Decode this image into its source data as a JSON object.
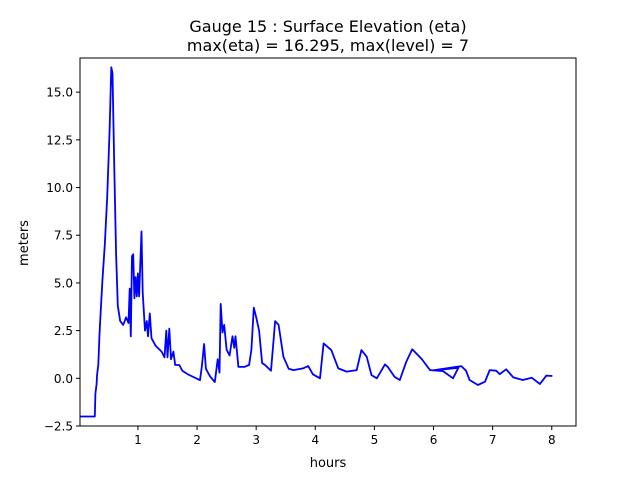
{
  "chart_data": {
    "type": "line",
    "title_line1": "Gauge 15 : Surface Elevation (eta)",
    "title_line2": "max(eta) =  16.295,    max(level) = 7",
    "xlabel": "hours",
    "ylabel": "meters",
    "xlim": [
      0.02,
      8.41
    ],
    "ylim": [
      -2.5,
      16.79
    ],
    "xticks": [
      1,
      2,
      3,
      4,
      5,
      6,
      7,
      8
    ],
    "xtick_labels": [
      "1",
      "2",
      "3",
      "4",
      "5",
      "6",
      "7",
      "8"
    ],
    "yticks": [
      -2.5,
      0,
      2.5,
      5,
      7.5,
      10,
      12.5,
      15
    ],
    "ytick_labels": [
      "−2.5",
      "0.0",
      "2.5",
      "5.0",
      "7.5",
      "10.0",
      "12.5",
      "15.0"
    ],
    "grid": false,
    "series": [
      {
        "name": "eta",
        "color": "#0000ff",
        "x": [
          0.02,
          0.27,
          0.28,
          0.3,
          0.31,
          0.33,
          0.35,
          0.37,
          0.4,
          0.44,
          0.48,
          0.52,
          0.55,
          0.57,
          0.6,
          0.63,
          0.66,
          0.7,
          0.75,
          0.8,
          0.84,
          0.86,
          0.88,
          0.9,
          0.92,
          0.94,
          0.96,
          0.98,
          1.0,
          1.02,
          1.04,
          1.06,
          1.08,
          1.12,
          1.15,
          1.17,
          1.2,
          1.23,
          1.3,
          1.4,
          1.45,
          1.48,
          1.5,
          1.53,
          1.56,
          1.6,
          1.63,
          1.7,
          1.75,
          1.85,
          2.05,
          2.08,
          2.12,
          2.15,
          2.22,
          2.3,
          2.35,
          2.38,
          2.4,
          2.43,
          2.46,
          2.5,
          2.55,
          2.6,
          2.63,
          2.65,
          2.7,
          2.8,
          2.88,
          2.92,
          2.96,
          3.0,
          3.05,
          3.1,
          3.15,
          3.25,
          3.3,
          3.32,
          3.38,
          3.46,
          3.55,
          3.63,
          3.79,
          3.88,
          3.96,
          4.08,
          4.14,
          4.27,
          4.39,
          4.53,
          4.7,
          4.78,
          4.87,
          4.95,
          5.04,
          5.18,
          5.23,
          5.34,
          5.43,
          5.54,
          5.64,
          5.8,
          5.94,
          6.0,
          6.16,
          6.33,
          6.42,
          6.0,
          6.47,
          6.55,
          6.61,
          6.75,
          6.87,
          6.95,
          7.06,
          7.12,
          7.23,
          7.35,
          7.51,
          7.66,
          7.8,
          7.91,
          8.01
        ],
        "y": [
          -2.0,
          -2.0,
          -0.8,
          -0.3,
          0.2,
          0.7,
          2.3,
          3.5,
          5.2,
          7.0,
          9.5,
          13.0,
          16.3,
          16.0,
          11.0,
          6.5,
          3.8,
          3.0,
          2.8,
          3.2,
          2.9,
          4.7,
          2.2,
          6.4,
          6.5,
          4.2,
          5.3,
          4.3,
          5.5,
          4.3,
          6.0,
          7.7,
          4.5,
          2.5,
          3.0,
          2.2,
          3.4,
          2.1,
          1.7,
          1.4,
          1.1,
          2.5,
          1.1,
          2.6,
          1.0,
          1.4,
          0.7,
          0.7,
          0.4,
          0.2,
          -0.1,
          0.6,
          1.8,
          0.5,
          0.1,
          -0.2,
          1.0,
          0.3,
          3.9,
          2.4,
          2.8,
          1.5,
          1.2,
          2.2,
          1.6,
          2.2,
          0.6,
          0.6,
          0.7,
          1.5,
          3.7,
          3.2,
          2.5,
          0.8,
          0.7,
          0.4,
          2.2,
          3.0,
          2.8,
          1.13,
          0.5,
          0.43,
          0.52,
          0.64,
          0.21,
          0.0,
          1.83,
          1.48,
          0.52,
          0.35,
          0.43,
          1.48,
          1.13,
          0.17,
          0.0,
          0.73,
          0.58,
          0.08,
          -0.09,
          0.87,
          1.52,
          1.01,
          0.43,
          0.42,
          0.38,
          0.0,
          0.55,
          0.42,
          0.64,
          0.4,
          -0.09,
          -0.35,
          -0.18,
          0.43,
          0.4,
          0.22,
          0.47,
          0.05,
          -0.09,
          0.03,
          -0.3,
          0.14,
          0.12
        ]
      }
    ]
  }
}
